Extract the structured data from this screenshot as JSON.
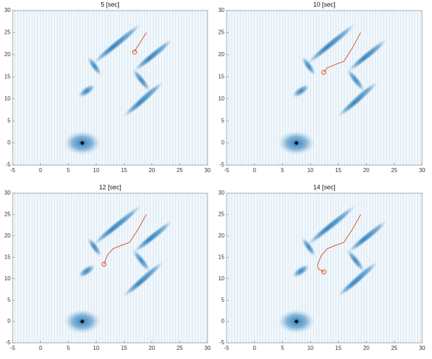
{
  "chart_data": [
    {
      "type": "line",
      "title": "5 [sec]",
      "xlim": [
        -5,
        30
      ],
      "ylim": [
        -5,
        30
      ],
      "xticks": [
        -5,
        0,
        5,
        10,
        15,
        20,
        25,
        30
      ],
      "yticks": [
        -5,
        0,
        5,
        10,
        15,
        20,
        25,
        30
      ],
      "series": [
        {
          "color": "#d9542b",
          "x": [
            19,
            18,
            17,
            16.9
          ],
          "values": [
            25,
            23,
            21,
            20.6
          ]
        },
        {
          "color": "#000000",
          "x": [
            7.5
          ],
          "values": [
            0
          ]
        }
      ]
    },
    {
      "type": "line",
      "title": "10 [sec]",
      "xlim": [
        -5,
        30
      ],
      "ylim": [
        -5,
        30
      ],
      "xticks": [
        -5,
        0,
        5,
        10,
        15,
        20,
        25,
        30
      ],
      "yticks": [
        -5,
        0,
        5,
        10,
        15,
        20,
        25,
        30
      ],
      "series": [
        {
          "color": "#d9542b",
          "x": [
            19,
            17.5,
            16,
            14.5,
            13,
            12.4
          ],
          "values": [
            25,
            21.5,
            18.5,
            17.8,
            17,
            16
          ]
        },
        {
          "color": "#000000",
          "x": [
            7.5
          ],
          "values": [
            0
          ]
        }
      ]
    },
    {
      "type": "line",
      "title": "12 [sec]",
      "xlim": [
        -5,
        30
      ],
      "ylim": [
        -5,
        30
      ],
      "xticks": [
        -5,
        0,
        5,
        10,
        15,
        20,
        25,
        30
      ],
      "yticks": [
        -5,
        0,
        5,
        10,
        15,
        20,
        25,
        30
      ],
      "series": [
        {
          "color": "#d9542b",
          "x": [
            19,
            17.5,
            16,
            14.5,
            13,
            12,
            11.4
          ],
          "values": [
            25,
            21.5,
            18.5,
            17.8,
            17,
            15.5,
            13.4
          ]
        },
        {
          "color": "#000000",
          "x": [
            7.5
          ],
          "values": [
            0
          ]
        }
      ]
    },
    {
      "type": "line",
      "title": "14 [sec]",
      "xlim": [
        -5,
        30
      ],
      "ylim": [
        -5,
        30
      ],
      "xticks": [
        -5,
        0,
        5,
        10,
        15,
        20,
        25,
        30
      ],
      "yticks": [
        -5,
        0,
        5,
        10,
        15,
        20,
        25,
        30
      ],
      "series": [
        {
          "color": "#d9542b",
          "x": [
            19,
            17.5,
            16,
            14.5,
            13,
            12,
            11.3,
            11.4,
            12.4
          ],
          "values": [
            25,
            21.5,
            18.5,
            17.8,
            17,
            15.5,
            13.4,
            12.3,
            11.6
          ]
        },
        {
          "color": "#000000",
          "x": [
            7.5
          ],
          "values": [
            0
          ]
        }
      ]
    }
  ]
}
